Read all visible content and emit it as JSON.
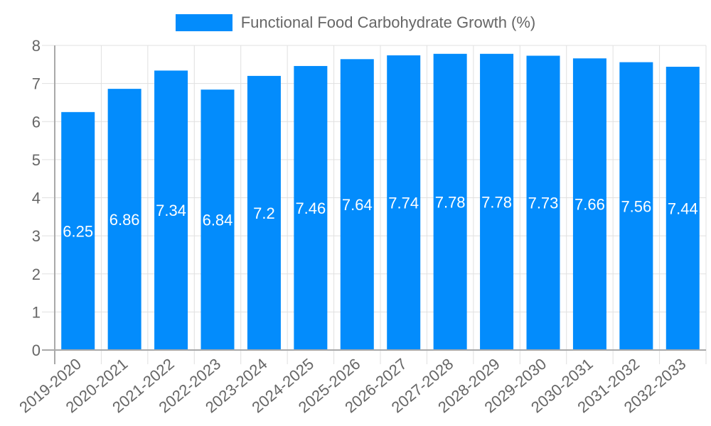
{
  "colors": {
    "bar": "#038cfc",
    "grid": "#e0e0e0",
    "axis": "#a9a9a9",
    "tick_text": "#666666",
    "label_text": "#ffffff"
  },
  "legend": {
    "label": "Functional Food Carbohydrate Growth (%)"
  },
  "chart_data": {
    "type": "bar",
    "title": "",
    "xlabel": "",
    "ylabel": "",
    "ylim": [
      0,
      8
    ],
    "yticks": [
      0,
      1,
      2,
      3,
      4,
      5,
      6,
      7,
      8
    ],
    "grid": true,
    "legend_position": "top",
    "categories": [
      "2019-2020",
      "2020-2021",
      "2021-2022",
      "2022-2023",
      "2023-2024",
      "2024-2025",
      "2025-2026",
      "2026-2027",
      "2027-2028",
      "2028-2029",
      "2029-2030",
      "2030-2031",
      "2031-2032",
      "2032-2033"
    ],
    "series": [
      {
        "name": "Functional Food Carbohydrate Growth (%)",
        "values": [
          6.25,
          6.86,
          7.34,
          6.84,
          7.2,
          7.46,
          7.64,
          7.74,
          7.78,
          7.78,
          7.73,
          7.66,
          7.56,
          7.44
        ],
        "labels": [
          "6.25",
          "6.86",
          "7.34",
          "6.84",
          "7.2",
          "7.46",
          "7.64",
          "7.74",
          "7.78",
          "7.78",
          "7.73",
          "7.66",
          "7.56",
          "7.44"
        ]
      }
    ]
  }
}
